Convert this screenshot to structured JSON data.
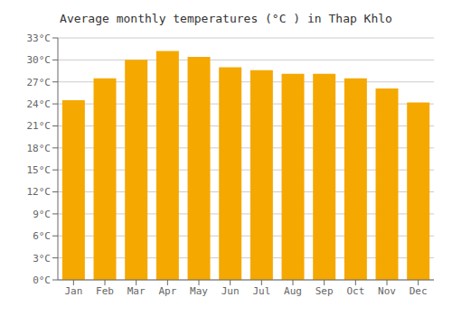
{
  "chart_data": {
    "type": "bar",
    "title": "Average monthly temperatures (°C ) in Thap Khlo",
    "categories": [
      "Jan",
      "Feb",
      "Mar",
      "Apr",
      "May",
      "Jun",
      "Jul",
      "Aug",
      "Sep",
      "Oct",
      "Nov",
      "Dec"
    ],
    "values": [
      24.5,
      27.5,
      30.0,
      31.2,
      30.4,
      29.0,
      28.6,
      28.1,
      28.1,
      27.5,
      26.1,
      24.2
    ],
    "color": "#F5A800",
    "ylim": [
      0,
      33
    ],
    "yticks": [
      {
        "value": 0,
        "label": "0°C"
      },
      {
        "value": 3,
        "label": "3°C"
      },
      {
        "value": 6,
        "label": "6°C"
      },
      {
        "value": 9,
        "label": "9°C"
      },
      {
        "value": 12,
        "label": "12°C"
      },
      {
        "value": 15,
        "label": "15°C"
      },
      {
        "value": 18,
        "label": "18°C"
      },
      {
        "value": 21,
        "label": "21°C"
      },
      {
        "value": 24,
        "label": "24°C"
      },
      {
        "value": 27,
        "label": "27°C"
      },
      {
        "value": 30,
        "label": "30°C"
      },
      {
        "value": 33,
        "label": "33°C"
      }
    ],
    "grid": true
  }
}
